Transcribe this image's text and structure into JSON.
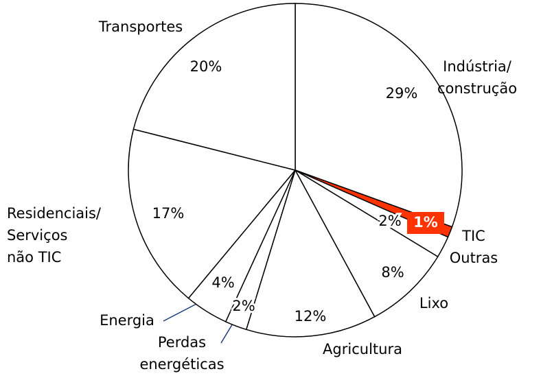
{
  "chart_data": {
    "type": "pie",
    "categories": [
      "Indústria/\nconstrução",
      "TIC",
      "Outras",
      "Lixo",
      "Agricultura",
      "Perdas\nenergéticas",
      "Energia",
      "Residenciais/\nServiços\nnão TIC",
      "Transportes"
    ],
    "values": [
      29,
      1,
      2,
      8,
      12,
      2,
      4,
      17,
      20
    ],
    "value_labels": [
      "29%",
      "1%",
      "2%",
      "8%",
      "12%",
      "2%",
      "4%",
      "17%",
      "20%"
    ],
    "colors": [
      "#ffffff",
      "#ff3300",
      "#ffffff",
      "#ffffff",
      "#ffffff",
      "#ffffff",
      "#ffffff",
      "#ffffff",
      "#ffffff"
    ]
  }
}
